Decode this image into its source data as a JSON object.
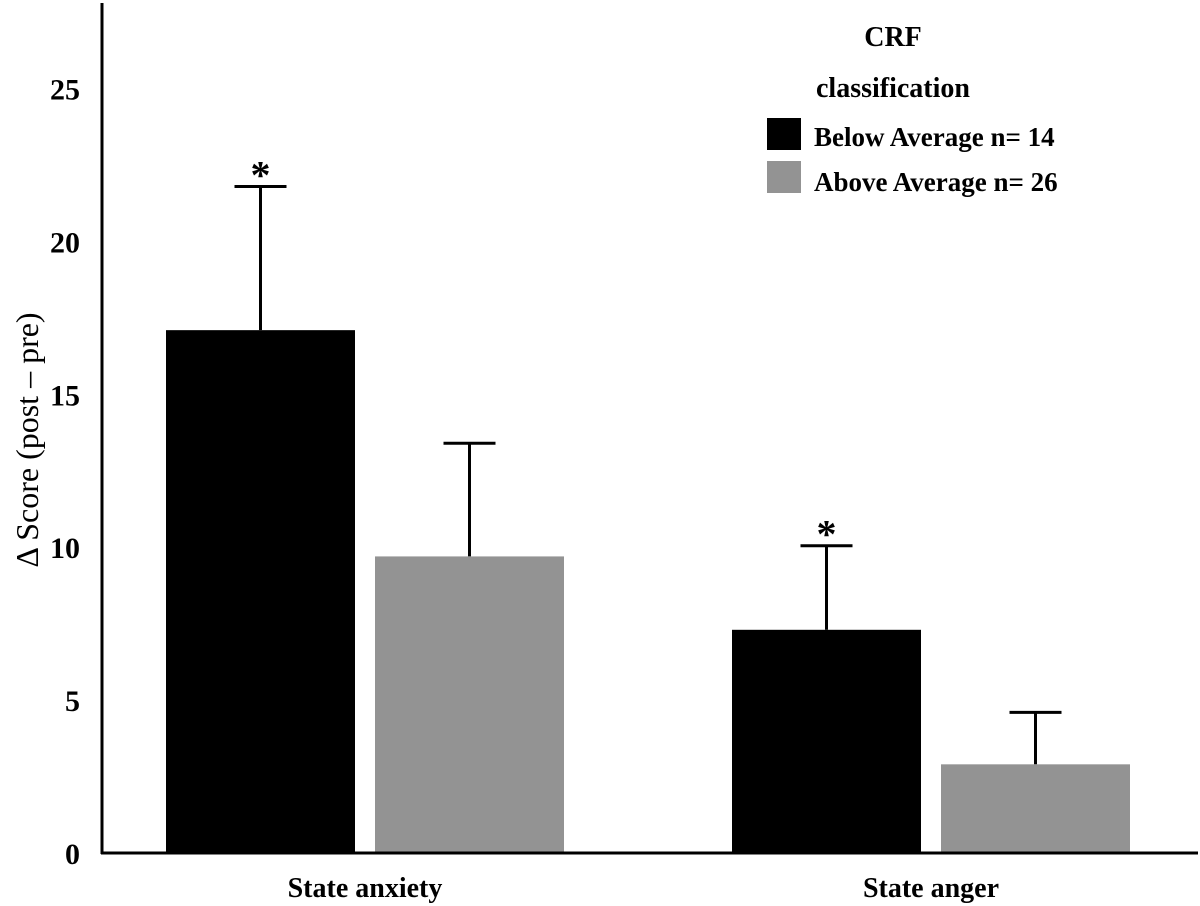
{
  "chart_data": {
    "type": "bar",
    "title": "",
    "xlabel": "",
    "ylabel": "Δ Score (post – pre)",
    "ylim": [
      0,
      27.8
    ],
    "yticks": [
      0,
      5,
      10,
      15,
      20,
      25
    ],
    "categories": [
      "State anxiety",
      "State anger"
    ],
    "legend": {
      "title_line1": "CRF",
      "title_line2": "classification",
      "placement": "top-right"
    },
    "series": [
      {
        "name": "Below Average n= 14",
        "color": "#000000",
        "values": [
          17.1,
          7.3
        ],
        "error_upper": [
          21.8,
          10.05
        ],
        "annotations": [
          "*",
          "*"
        ]
      },
      {
        "name": "Above Average n= 26",
        "color": "#939393",
        "values": [
          9.7,
          2.9
        ],
        "error_upper": [
          13.4,
          4.6
        ],
        "annotations": [
          "",
          ""
        ]
      }
    ],
    "grid": false
  }
}
